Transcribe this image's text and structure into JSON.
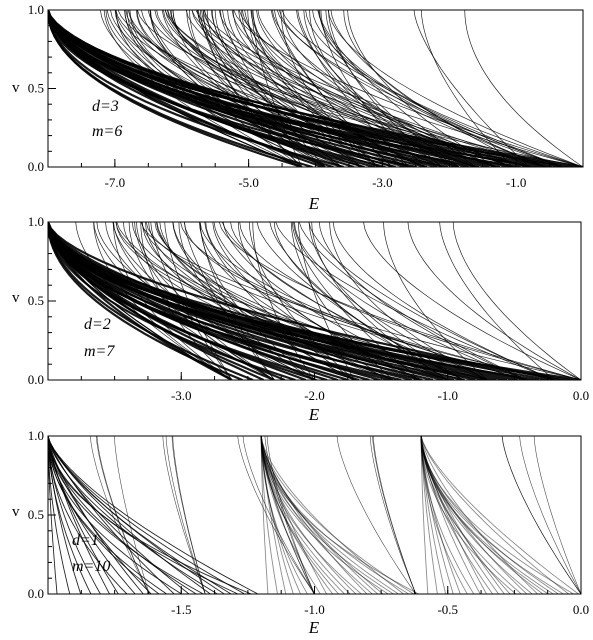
{
  "chart_data": [
    {
      "type": "line",
      "panel": "top",
      "annotation": [
        "d=3",
        "m=6"
      ],
      "xlabel": "E",
      "ylabel": "v",
      "xlim": [
        -8.0,
        0.0
      ],
      "ylim": [
        0.0,
        1.0
      ],
      "x_ticks": [
        "-7.0",
        "-5.0",
        "-3.0",
        "-1.0"
      ],
      "y_ticks": [
        "0.0",
        "0.5",
        "1.0"
      ],
      "base_energy": -8.0,
      "cusp_energies": [
        -4.2,
        -3.85,
        -3.6,
        -3.3,
        -3.05,
        -2.85,
        -2.6,
        -2.35,
        -2.1,
        -1.85,
        -1.6,
        -1.3,
        -1.05,
        -0.8,
        -0.55,
        -0.3,
        0.0
      ],
      "grid": false,
      "legend": "none"
    },
    {
      "type": "line",
      "panel": "middle",
      "annotation": [
        "d=2",
        "m=7"
      ],
      "xlabel": "E",
      "ylabel": "v",
      "xlim": [
        -4.0,
        0.0
      ],
      "ylim": [
        0.0,
        1.0
      ],
      "x_ticks": [
        "-3.0",
        "-2.0",
        "-1.0",
        "0.0"
      ],
      "y_ticks": [
        "0.0",
        "0.5",
        "1.0"
      ],
      "base_energy": -4.0,
      "cusp_energies": [
        -2.62,
        -2.3,
        -2.0,
        -1.7,
        -1.41,
        -1.2,
        -1.0,
        -0.88,
        -0.7,
        -0.41,
        -0.2,
        0.0
      ],
      "grid": false,
      "legend": "none"
    },
    {
      "type": "line",
      "panel": "bottom",
      "annotation": [
        "d=1",
        "m=10"
      ],
      "xlabel": "E",
      "ylabel": "v",
      "xlim": [
        -2.0,
        0.0
      ],
      "ylim": [
        0.0,
        1.0
      ],
      "x_ticks": [
        "-1.5",
        "-1.0",
        "-0.5",
        "0.0"
      ],
      "y_ticks": [
        "0.0",
        "0.5",
        "1.0"
      ],
      "band_edges": [
        -2.0,
        -1.2,
        -0.6,
        0.0
      ],
      "cusp_energies": [
        -1.62,
        -1.41,
        -1.0,
        -0.62,
        0.0
      ],
      "grid": false,
      "legend": "none"
    }
  ]
}
